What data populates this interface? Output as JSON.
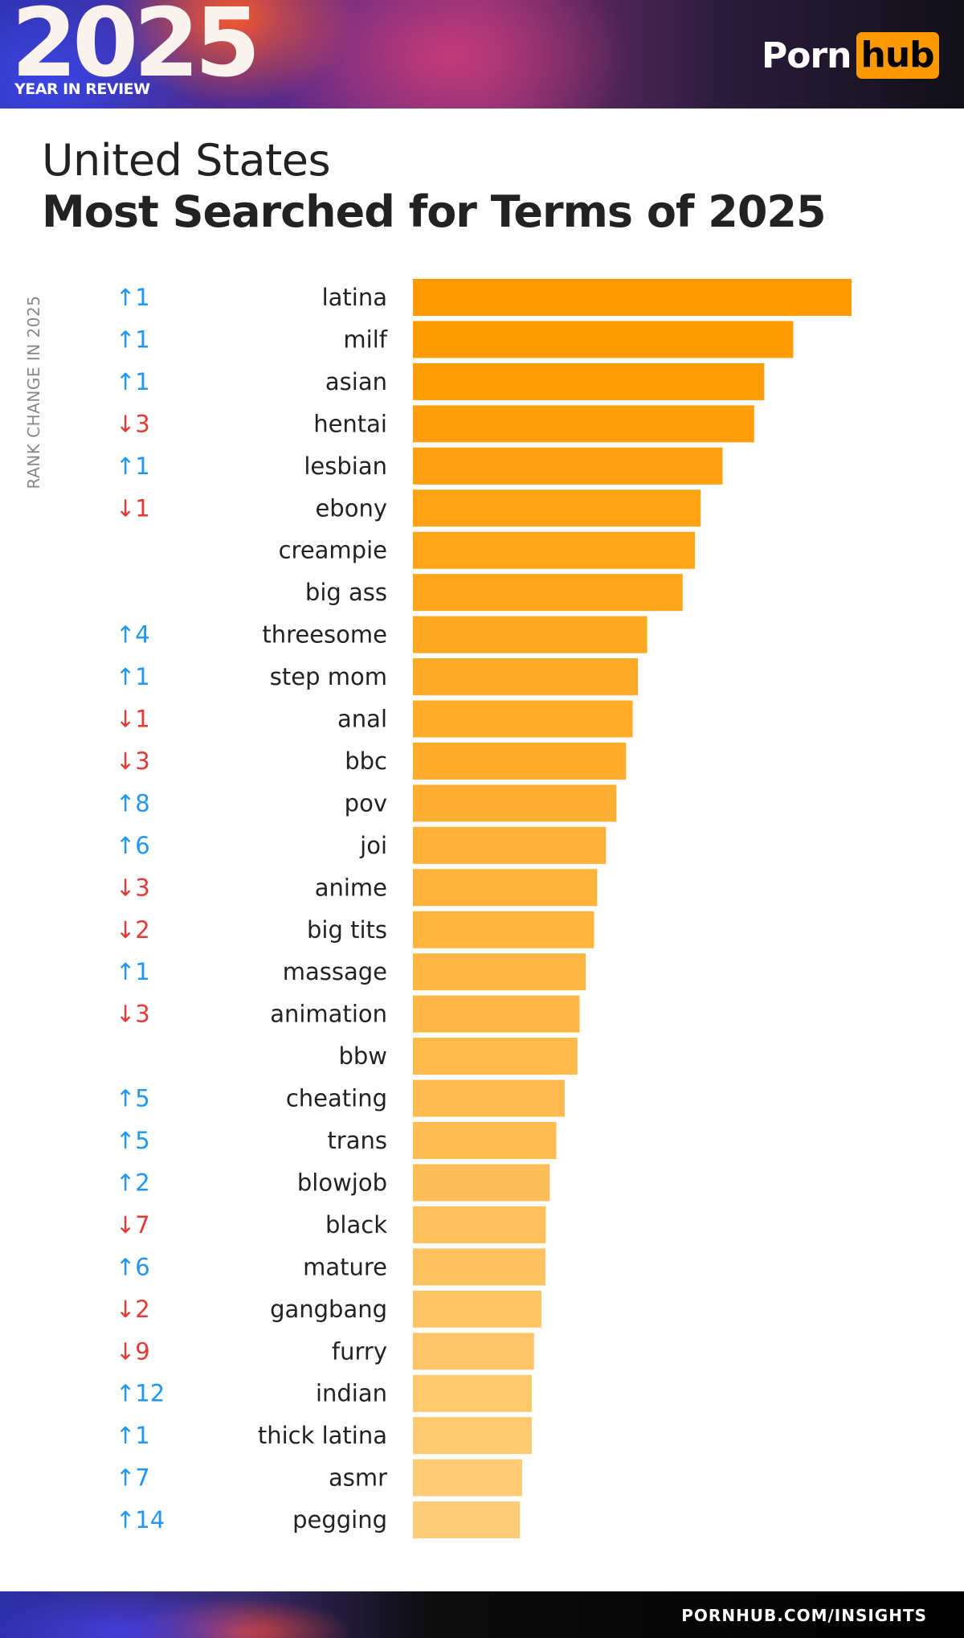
{
  "header": {
    "year": "2025",
    "year_in_review": "YEAR IN REVIEW",
    "logo_porn": "Porn",
    "logo_hub": "hub"
  },
  "subtitle": "United States",
  "title": "Most Searched for Terms of 2025",
  "axis_label": "RANK CHANGE IN 2025",
  "footer": {
    "url": "PORNHUB.COM/INSIGHTS"
  },
  "colors": {
    "up": "#2196f3",
    "down": "#e53935",
    "bar_top": "#ff9a00",
    "bar_bottom": "#ffcd7a"
  },
  "chart_data": {
    "type": "bar",
    "orientation": "horizontal",
    "categories": [
      "latina",
      "milf",
      "asian",
      "hentai",
      "lesbian",
      "ebony",
      "creampie",
      "big ass",
      "threesome",
      "step mom",
      "anal",
      "bbc",
      "pov",
      "joi",
      "anime",
      "big tits",
      "massage",
      "animation",
      "bbw",
      "cheating",
      "trans",
      "blowjob",
      "black",
      "mature",
      "gangbang",
      "furry",
      "indian",
      "thick latina",
      "asmr",
      "pegging"
    ],
    "values": [
      100,
      86.7,
      80.1,
      77.8,
      70.6,
      65.6,
      64.3,
      61.5,
      53.4,
      51.3,
      50.1,
      48.6,
      46.4,
      44.0,
      42.0,
      41.3,
      39.4,
      38.0,
      37.5,
      34.6,
      32.7,
      31.2,
      30.3,
      30.2,
      29.3,
      27.6,
      27.1,
      27.1,
      24.9,
      24.4
    ],
    "rank_change": [
      "↑1",
      "↑1",
      "↑1",
      "↓3",
      "↑1",
      "↓1",
      "",
      "",
      "↑4",
      "↑1",
      "↓1",
      "↓3",
      "↑8",
      "↑6",
      "↓3",
      "↓2",
      "↑1",
      "↓3",
      "",
      "↑5",
      "↑5",
      "↑2",
      "↓7",
      "↑6",
      "↓2",
      "↓9",
      "↑12",
      "↑1",
      "↑7",
      "↑14"
    ],
    "xlim": [
      0,
      100
    ]
  }
}
